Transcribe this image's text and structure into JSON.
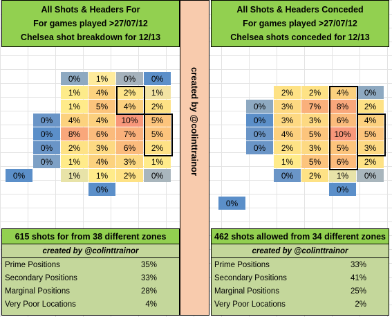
{
  "left": {
    "title_lines": [
      "All Shots & Headers For",
      "For games played >27/07/12",
      "Chelsea shot breakdown for 12/13"
    ],
    "cells": [
      {
        "c": 2,
        "r": 0,
        "v": "0%",
        "bg": "#8ea9c1"
      },
      {
        "c": 3,
        "r": 0,
        "v": "1%",
        "bg": "#ffeb9c"
      },
      {
        "c": 4,
        "r": 0,
        "v": "0%",
        "bg": "#a5b2bc"
      },
      {
        "c": 5,
        "r": 0,
        "v": "0%",
        "bg": "#5b8fc9"
      },
      {
        "c": 2,
        "r": 1,
        "v": "1%",
        "bg": "#fdeb8a"
      },
      {
        "c": 3,
        "r": 1,
        "v": "4%",
        "bg": "#fcd27e"
      },
      {
        "c": 4,
        "r": 1,
        "v": "2%",
        "bg": "#fee58a"
      },
      {
        "c": 5,
        "r": 1,
        "v": "1%",
        "bg": "#f2e3a3"
      },
      {
        "c": 2,
        "r": 2,
        "v": "1%",
        "bg": "#ffeb8a"
      },
      {
        "c": 3,
        "r": 2,
        "v": "5%",
        "bg": "#fcc47c"
      },
      {
        "c": 4,
        "r": 2,
        "v": "4%",
        "bg": "#fcd07e"
      },
      {
        "c": 5,
        "r": 2,
        "v": "2%",
        "bg": "#fee285"
      },
      {
        "c": 1,
        "r": 3,
        "v": "0%",
        "bg": "#6a95c7"
      },
      {
        "c": 2,
        "r": 3,
        "v": "4%",
        "bg": "#fcd27e"
      },
      {
        "c": 3,
        "r": 3,
        "v": "4%",
        "bg": "#fcd07e"
      },
      {
        "c": 4,
        "r": 3,
        "v": "10%",
        "bg": "#f8977a"
      },
      {
        "c": 5,
        "r": 3,
        "v": "5%",
        "bg": "#fcc47c"
      },
      {
        "c": 1,
        "r": 4,
        "v": "0%",
        "bg": "#5b8fc9"
      },
      {
        "c": 2,
        "r": 4,
        "v": "8%",
        "bg": "#f9a77b"
      },
      {
        "c": 3,
        "r": 4,
        "v": "6%",
        "bg": "#fbbb7c"
      },
      {
        "c": 4,
        "r": 4,
        "v": "7%",
        "bg": "#fab07b"
      },
      {
        "c": 5,
        "r": 4,
        "v": "5%",
        "bg": "#fcc47c"
      },
      {
        "c": 1,
        "r": 5,
        "v": "0%",
        "bg": "#6a95c7"
      },
      {
        "c": 2,
        "r": 5,
        "v": "2%",
        "bg": "#fee285"
      },
      {
        "c": 3,
        "r": 5,
        "v": "3%",
        "bg": "#fdd982"
      },
      {
        "c": 4,
        "r": 5,
        "v": "6%",
        "bg": "#fbbb7c"
      },
      {
        "c": 5,
        "r": 5,
        "v": "2%",
        "bg": "#fee285"
      },
      {
        "c": 1,
        "r": 6,
        "v": "0%",
        "bg": "#7ea1c6"
      },
      {
        "c": 2,
        "r": 6,
        "v": "1%",
        "bg": "#ffeb8a"
      },
      {
        "c": 3,
        "r": 6,
        "v": "4%",
        "bg": "#fcd27e"
      },
      {
        "c": 4,
        "r": 6,
        "v": "3%",
        "bg": "#fdd982"
      },
      {
        "c": 5,
        "r": 6,
        "v": "1%",
        "bg": "#ffeb8a"
      },
      {
        "c": 0,
        "r": 7,
        "v": "0%",
        "bg": "#5b8fc9"
      },
      {
        "c": 2,
        "r": 7,
        "v": "1%",
        "bg": "#e8e3a8"
      },
      {
        "c": 3,
        "r": 7,
        "v": "1%",
        "bg": "#ffeb8a"
      },
      {
        "c": 4,
        "r": 7,
        "v": "2%",
        "bg": "#fee285"
      },
      {
        "c": 5,
        "r": 7,
        "v": "0%",
        "bg": "#a9b6bd"
      },
      {
        "c": 3,
        "r": 8,
        "v": "0%",
        "bg": "#5b8fc9"
      }
    ],
    "summary_head": "615 shots for from 38 different zones",
    "credit": "created by @colinttrainor",
    "stats": [
      {
        "label": "Prime Positions",
        "value": "35%"
      },
      {
        "label": "Secondary Positions",
        "value": "33%"
      },
      {
        "label": "Marginal Positions",
        "value": "28%"
      },
      {
        "label": "Very Poor Locations",
        "value": "4%"
      }
    ]
  },
  "right": {
    "title_lines": [
      "All Shots & Headers Conceded",
      "For games played >27/07/12",
      "Chelsea shots conceded for 12/13"
    ],
    "cells": [
      {
        "c": 2,
        "r": 1,
        "v": "2%",
        "bg": "#fee285"
      },
      {
        "c": 3,
        "r": 1,
        "v": "2%",
        "bg": "#fee285"
      },
      {
        "c": 4,
        "r": 1,
        "v": "4%",
        "bg": "#fcd07e"
      },
      {
        "c": 5,
        "r": 1,
        "v": "0%",
        "bg": "#8ea9c1"
      },
      {
        "c": 1,
        "r": 2,
        "v": "0%",
        "bg": "#8ea9c1"
      },
      {
        "c": 2,
        "r": 2,
        "v": "3%",
        "bg": "#fdd982"
      },
      {
        "c": 3,
        "r": 2,
        "v": "7%",
        "bg": "#fab07b"
      },
      {
        "c": 4,
        "r": 2,
        "v": "8%",
        "bg": "#f9a77b"
      },
      {
        "c": 5,
        "r": 2,
        "v": "2%",
        "bg": "#fee285"
      },
      {
        "c": 1,
        "r": 3,
        "v": "0%",
        "bg": "#5b8fc9"
      },
      {
        "c": 2,
        "r": 3,
        "v": "3%",
        "bg": "#fdd982"
      },
      {
        "c": 3,
        "r": 3,
        "v": "3%",
        "bg": "#fdd982"
      },
      {
        "c": 4,
        "r": 3,
        "v": "6%",
        "bg": "#fbbb7c"
      },
      {
        "c": 5,
        "r": 3,
        "v": "4%",
        "bg": "#fcd07e"
      },
      {
        "c": 1,
        "r": 4,
        "v": "0%",
        "bg": "#6a95c7"
      },
      {
        "c": 2,
        "r": 4,
        "v": "4%",
        "bg": "#fcd07e"
      },
      {
        "c": 3,
        "r": 4,
        "v": "5%",
        "bg": "#fcc47c"
      },
      {
        "c": 4,
        "r": 4,
        "v": "10%",
        "bg": "#f8977a"
      },
      {
        "c": 5,
        "r": 4,
        "v": "5%",
        "bg": "#fcc47c"
      },
      {
        "c": 1,
        "r": 5,
        "v": "0%",
        "bg": "#6a95c7"
      },
      {
        "c": 2,
        "r": 5,
        "v": "2%",
        "bg": "#fee285"
      },
      {
        "c": 3,
        "r": 5,
        "v": "3%",
        "bg": "#fdd982"
      },
      {
        "c": 4,
        "r": 5,
        "v": "5%",
        "bg": "#fcc47c"
      },
      {
        "c": 5,
        "r": 5,
        "v": "3%",
        "bg": "#fdd982"
      },
      {
        "c": 2,
        "r": 6,
        "v": "1%",
        "bg": "#ffeb8a"
      },
      {
        "c": 3,
        "r": 6,
        "v": "5%",
        "bg": "#fcc47c"
      },
      {
        "c": 4,
        "r": 6,
        "v": "6%",
        "bg": "#fbbb7c"
      },
      {
        "c": 5,
        "r": 6,
        "v": "2%",
        "bg": "#fee285"
      },
      {
        "c": 2,
        "r": 7,
        "v": "0%",
        "bg": "#6a95c7"
      },
      {
        "c": 3,
        "r": 7,
        "v": "2%",
        "bg": "#fee285"
      },
      {
        "c": 4,
        "r": 7,
        "v": "1%",
        "bg": "#e8e3a8"
      },
      {
        "c": 5,
        "r": 7,
        "v": "0%",
        "bg": "#a9b6bd"
      },
      {
        "c": 4,
        "r": 8,
        "v": "0%",
        "bg": "#5b8fc9"
      },
      {
        "c": 0,
        "r": 9,
        "v": "0%",
        "bg": "#5b8fc9"
      }
    ],
    "summary_head": "462 shots allowed from 34 different zones",
    "credit": "created by @colinttrainor",
    "stats": [
      {
        "label": "Prime Positions",
        "value": "33%"
      },
      {
        "label": "Secondary Positions",
        "value": "41%"
      },
      {
        "label": "Marginal Positions",
        "value": "25%"
      },
      {
        "label": "Very Poor Locations",
        "value": "2%"
      }
    ]
  },
  "divider_text": "created by @colinttrainor"
}
